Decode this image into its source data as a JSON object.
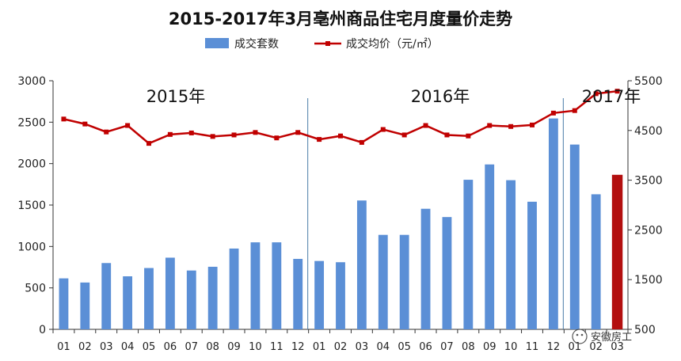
{
  "chart_data": {
    "type": "bar+line",
    "title": "2015-2017年3月亳州商品住宅月度量价走势",
    "categories": [
      "01",
      "02",
      "03",
      "04",
      "05",
      "06",
      "07",
      "08",
      "09",
      "10",
      "11",
      "12",
      "01",
      "02",
      "03",
      "04",
      "05",
      "06",
      "07",
      "08",
      "09",
      "10",
      "11",
      "12",
      "01",
      "02",
      "03"
    ],
    "year_labels": [
      {
        "text": "2015年",
        "at_index": 0
      },
      {
        "text": "2016年",
        "at_index": 12
      },
      {
        "text": "2017年",
        "at_index": 24
      }
    ],
    "series": [
      {
        "name": "成交套数",
        "type": "bar",
        "axis": "left",
        "color": "#5b8fd6",
        "highlight_last_color": "#b30f0f",
        "values": [
          615,
          565,
          800,
          640,
          740,
          865,
          710,
          755,
          975,
          1050,
          1050,
          850,
          825,
          810,
          1555,
          1140,
          1140,
          1455,
          1355,
          1805,
          1990,
          1800,
          1540,
          2545,
          2230,
          1630,
          1865
        ]
      },
      {
        "name": "成交均价（元/㎡）",
        "type": "line",
        "axis": "right",
        "color": "#c00000",
        "values": [
          4730,
          4630,
          4470,
          4600,
          4240,
          4420,
          4450,
          4380,
          4410,
          4460,
          4350,
          4460,
          4320,
          4390,
          4260,
          4520,
          4410,
          4600,
          4410,
          4390,
          4600,
          4580,
          4610,
          4850,
          4900,
          5240,
          5290
        ]
      }
    ],
    "y_left": {
      "min": 0,
      "max": 3000,
      "ticks": [
        0,
        500,
        1000,
        1500,
        2000,
        2500,
        3000
      ]
    },
    "y_right": {
      "min": 500,
      "max": 5500,
      "ticks": [
        500,
        1500,
        2500,
        3500,
        4500,
        5500
      ]
    },
    "legend": {
      "placement": "top-center"
    },
    "grid": false
  },
  "watermark": {
    "text": "安徽房工"
  }
}
